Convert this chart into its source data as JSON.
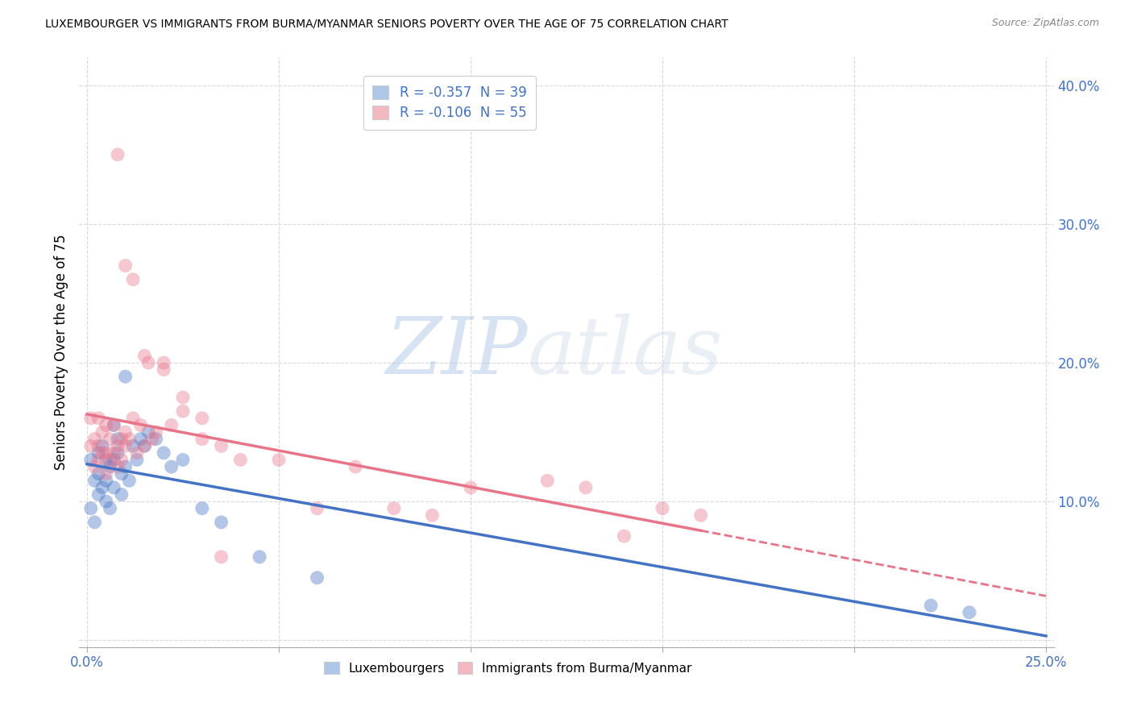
{
  "title": "LUXEMBOURGER VS IMMIGRANTS FROM BURMA/MYANMAR SENIORS POVERTY OVER THE AGE OF 75 CORRELATION CHART",
  "source": "Source: ZipAtlas.com",
  "ylabel": "Seniors Poverty Over the Age of 75",
  "xlabel": "",
  "xlim": [
    -0.002,
    0.252
  ],
  "ylim": [
    -0.005,
    0.42
  ],
  "xticks": [
    0.0,
    0.05,
    0.1,
    0.15,
    0.2,
    0.25
  ],
  "yticks": [
    0.0,
    0.1,
    0.2,
    0.3,
    0.4
  ],
  "xticklabels": [
    "0.0%",
    "",
    "",
    "",
    "",
    "25.0%"
  ],
  "yticklabels_right": [
    "",
    "10.0%",
    "20.0%",
    "30.0%",
    "40.0%"
  ],
  "legend1_label": "R = -0.357  N = 39",
  "legend2_label": "R = -0.106  N = 55",
  "legend1_color": "#aec6e8",
  "legend2_color": "#f4b8c1",
  "watermark_zip": "ZIP",
  "watermark_atlas": "atlas",
  "lux_scatter_x": [
    0.001,
    0.001,
    0.002,
    0.002,
    0.003,
    0.003,
    0.003,
    0.004,
    0.004,
    0.005,
    0.005,
    0.005,
    0.006,
    0.006,
    0.007,
    0.007,
    0.007,
    0.008,
    0.008,
    0.009,
    0.009,
    0.01,
    0.01,
    0.011,
    0.012,
    0.013,
    0.014,
    0.015,
    0.016,
    0.018,
    0.02,
    0.022,
    0.025,
    0.03,
    0.035,
    0.045,
    0.06,
    0.22,
    0.23
  ],
  "lux_scatter_y": [
    0.095,
    0.13,
    0.085,
    0.115,
    0.135,
    0.12,
    0.105,
    0.14,
    0.11,
    0.115,
    0.13,
    0.1,
    0.125,
    0.095,
    0.11,
    0.155,
    0.13,
    0.135,
    0.145,
    0.105,
    0.12,
    0.19,
    0.125,
    0.115,
    0.14,
    0.13,
    0.145,
    0.14,
    0.15,
    0.145,
    0.135,
    0.125,
    0.13,
    0.095,
    0.085,
    0.06,
    0.045,
    0.025,
    0.02
  ],
  "burma_scatter_x": [
    0.001,
    0.001,
    0.002,
    0.002,
    0.003,
    0.003,
    0.003,
    0.004,
    0.004,
    0.005,
    0.005,
    0.005,
    0.006,
    0.006,
    0.007,
    0.007,
    0.008,
    0.008,
    0.009,
    0.009,
    0.01,
    0.01,
    0.011,
    0.012,
    0.013,
    0.014,
    0.015,
    0.016,
    0.017,
    0.018,
    0.02,
    0.022,
    0.025,
    0.03,
    0.035,
    0.04,
    0.05,
    0.06,
    0.07,
    0.08,
    0.1,
    0.12,
    0.13,
    0.15,
    0.16,
    0.015,
    0.02,
    0.025,
    0.03,
    0.035,
    0.008,
    0.01,
    0.012,
    0.14,
    0.09
  ],
  "burma_scatter_y": [
    0.16,
    0.14,
    0.145,
    0.125,
    0.14,
    0.16,
    0.13,
    0.15,
    0.135,
    0.155,
    0.135,
    0.12,
    0.13,
    0.145,
    0.135,
    0.155,
    0.14,
    0.125,
    0.145,
    0.13,
    0.15,
    0.14,
    0.145,
    0.16,
    0.135,
    0.155,
    0.14,
    0.2,
    0.145,
    0.15,
    0.2,
    0.155,
    0.165,
    0.145,
    0.14,
    0.13,
    0.13,
    0.095,
    0.125,
    0.095,
    0.11,
    0.115,
    0.11,
    0.095,
    0.09,
    0.205,
    0.195,
    0.175,
    0.16,
    0.06,
    0.35,
    0.27,
    0.26,
    0.075,
    0.09
  ],
  "lux_line_color": "#4472c4",
  "burma_line_color": "#e8748a",
  "background_color": "#ffffff",
  "grid_color": "#d8d8d8",
  "tick_color": "#4472c4"
}
